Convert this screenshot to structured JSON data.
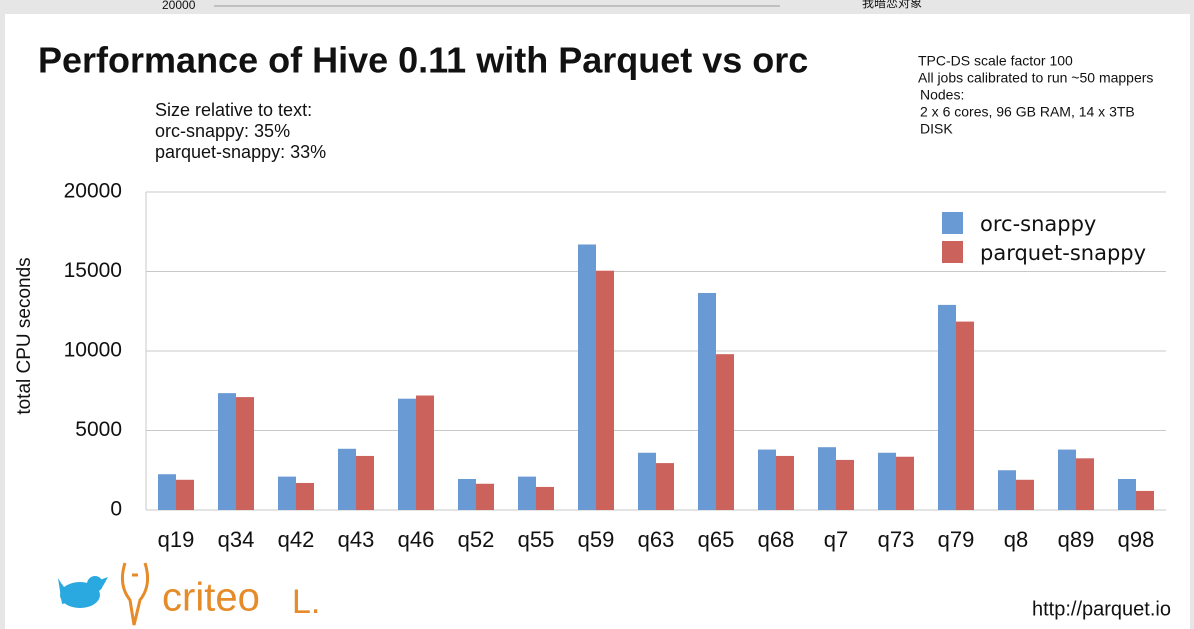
{
  "top_strip": {
    "left": "20000",
    "right": "我暗恋对象"
  },
  "chart_data": {
    "type": "bar",
    "title": "Performance of Hive 0.11 with Parquet vs orc",
    "size_notes": [
      "Size relative to text:",
      "orc-snappy: 35%",
      "parquet-snappy: 33%"
    ],
    "setup_notes": [
      "TPC-DS scale factor 100",
      "All jobs calibrated to run ~50 mappers",
      "Nodes:",
      "2 x 6 cores, 96 GB RAM, 14 x 3TB",
      "DISK"
    ],
    "ylabel": "total CPU seconds",
    "categories": [
      "q19",
      "q34",
      "q42",
      "q43",
      "q46",
      "q52",
      "q55",
      "q59",
      "q63",
      "q65",
      "q68",
      "q7",
      "q73",
      "q79",
      "q8",
      "q89",
      "q98"
    ],
    "series": [
      {
        "name": "orc-snappy",
        "color": "#6a9ad3",
        "values": [
          2250,
          7350,
          2100,
          3850,
          7000,
          1950,
          2100,
          16700,
          3600,
          13650,
          3800,
          3950,
          3600,
          12900,
          2500,
          3800,
          1950
        ]
      },
      {
        "name": "parquet-snappy",
        "color": "#cc625c",
        "values": [
          1900,
          7100,
          1700,
          3400,
          7200,
          1650,
          1450,
          15050,
          2950,
          9800,
          3400,
          3150,
          3350,
          11850,
          1900,
          3250,
          1200
        ]
      }
    ],
    "ylim": [
      0,
      20000
    ],
    "yticks": [
      0,
      5000,
      10000,
      15000,
      20000
    ],
    "grid": true,
    "legend": "top-right"
  },
  "footer": {
    "logo": "criteo",
    "logo_mark": "L.",
    "url": "http://parquet.io"
  }
}
